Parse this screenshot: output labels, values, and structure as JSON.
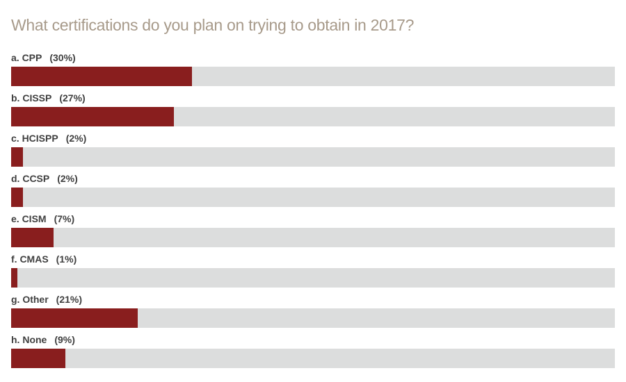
{
  "title": "What certifications do you plan on trying to obtain in 2017?",
  "colors": {
    "bar": "#891e1e",
    "track": "#dcdddd",
    "title_text": "#a79a8a",
    "label_text": "#3f3f3f",
    "background": "#ffffff"
  },
  "chart_data": {
    "type": "bar",
    "orientation": "horizontal",
    "title": "What certifications do you plan on trying to obtain in 2017?",
    "categories": [
      "a. CPP",
      "b. CISSP",
      "c. HCISPP",
      "d. CCSP",
      "e. CISM",
      "f. CMAS",
      "g. Other",
      "h. None"
    ],
    "values": [
      30,
      27,
      2,
      2,
      7,
      1,
      21,
      9
    ],
    "unit": "%",
    "xlim": [
      0,
      100
    ],
    "grid": false,
    "legend": false,
    "bars": [
      {
        "label": "a. CPP",
        "pct_label": "(30%)",
        "value": 30
      },
      {
        "label": "b. CISSP",
        "pct_label": "(27%)",
        "value": 27
      },
      {
        "label": "c. HCISPP",
        "pct_label": "(2%)",
        "value": 2
      },
      {
        "label": "d. CCSP",
        "pct_label": "(2%)",
        "value": 2
      },
      {
        "label": "e. CISM",
        "pct_label": "(7%)",
        "value": 7
      },
      {
        "label": "f. CMAS",
        "pct_label": "(1%)",
        "value": 1
      },
      {
        "label": "g. Other",
        "pct_label": "(21%)",
        "value": 21
      },
      {
        "label": "h. None",
        "pct_label": "(9%)",
        "value": 9
      }
    ]
  }
}
